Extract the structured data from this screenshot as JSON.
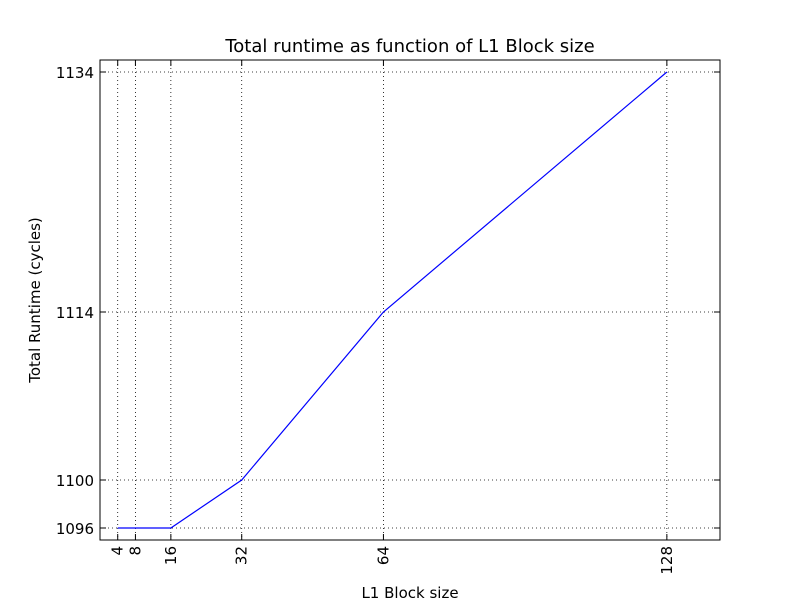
{
  "chart_data": {
    "type": "line",
    "title": "Total runtime as function of L1 Block size",
    "xlabel": "L1 Block size",
    "ylabel": "Total Runtime (cycles)",
    "x": [
      4,
      8,
      16,
      32,
      64,
      128
    ],
    "series": [
      {
        "name": "Total runtime",
        "color": "#0000ff",
        "values": [
          1096,
          1096,
          1096,
          1100,
          1114,
          1134
        ]
      }
    ],
    "xlim": [
      0,
      140
    ],
    "ylim": [
      1095,
      1135
    ],
    "xticks": [
      4,
      8,
      16,
      32,
      64,
      128
    ],
    "yticks": [
      1096,
      1100,
      1114,
      1134
    ],
    "grid": true
  }
}
